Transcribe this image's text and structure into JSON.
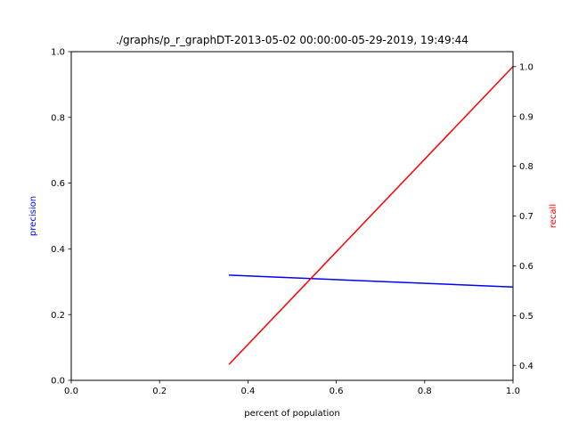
{
  "chart_data": {
    "type": "line",
    "title": "./graphs/p_r_graphDT-2013-05-02 00:00:00-05-29-2019, 19:49:44",
    "xlabel": "percent of population",
    "ylabel_left": "precision",
    "ylabel_right": "recall",
    "xlim": [
      0.0,
      1.0
    ],
    "ylim_left": [
      0.0,
      1.0
    ],
    "ylim_right": [
      0.37,
      1.03
    ],
    "x_ticks": [
      "0.0",
      "0.2",
      "0.4",
      "0.6",
      "0.8",
      "1.0"
    ],
    "y_left_ticks": [
      "0.0",
      "0.2",
      "0.4",
      "0.6",
      "0.8",
      "1.0"
    ],
    "y_right_ticks": [
      "0.4",
      "0.5",
      "0.6",
      "0.7",
      "0.8",
      "0.9",
      "1.0"
    ],
    "grid": false,
    "colors": {
      "precision": "#0000ff",
      "recall": "#ff0000",
      "left_label": "#0000ff",
      "right_label": "#ff0000"
    },
    "series": [
      {
        "axis": "left",
        "color": "#0000ff",
        "x": [
          0.357,
          1.0
        ],
        "y": [
          0.32,
          0.284
        ]
      },
      {
        "axis": "right",
        "color": "#ff0000",
        "x": [
          0.357,
          1.0
        ],
        "y": [
          0.402,
          1.0
        ]
      }
    ]
  }
}
